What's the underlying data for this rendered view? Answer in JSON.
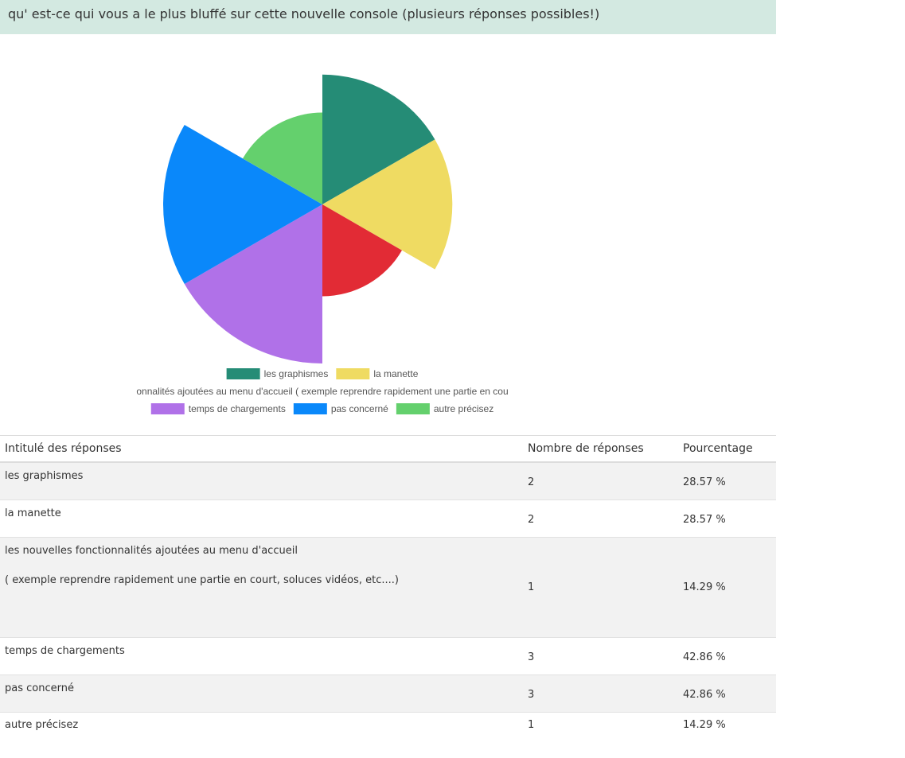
{
  "question": "qu' est-ce qui vous a le plus bluffé sur cette nouvelle console (plusieurs réponses possibles!)",
  "chart_data": {
    "type": "polar-area",
    "categories": [
      "les graphismes",
      "la manette",
      "onnalités  ajoutées au menu d'accueil ( exemple reprendre rapidement une partie en cou",
      "temps de chargements",
      "pas concerné",
      "autre précisez"
    ],
    "values": [
      2,
      2,
      1,
      3,
      3,
      1
    ],
    "colors": [
      "#258c76",
      "#efdb62",
      "#e22b35",
      "#b071e8",
      "#0a88fa",
      "#64d06d"
    ],
    "legend_position": "bottom"
  },
  "table": {
    "headers": [
      "Intitulé des réponses",
      "Nombre de réponses",
      "Pourcentage"
    ],
    "rows": [
      {
        "label": "les graphismes",
        "count": "2",
        "percent": "28.57 %"
      },
      {
        "label": "la manette",
        "count": "2",
        "percent": "28.57 %"
      },
      {
        "label": "les nouvelles fonctionnalités  ajoutées au menu d'accueil",
        "label2": "( exemple reprendre rapidement une partie en court, soluces vidéos, etc....)",
        "count": "1",
        "percent": "14.29 %"
      },
      {
        "label": "temps de chargements",
        "count": "3",
        "percent": "42.86 %"
      },
      {
        "label": "pas concerné",
        "count": "3",
        "percent": "42.86 %"
      },
      {
        "label": "autre précisez",
        "count": "1",
        "percent": "14.29 %"
      }
    ]
  }
}
